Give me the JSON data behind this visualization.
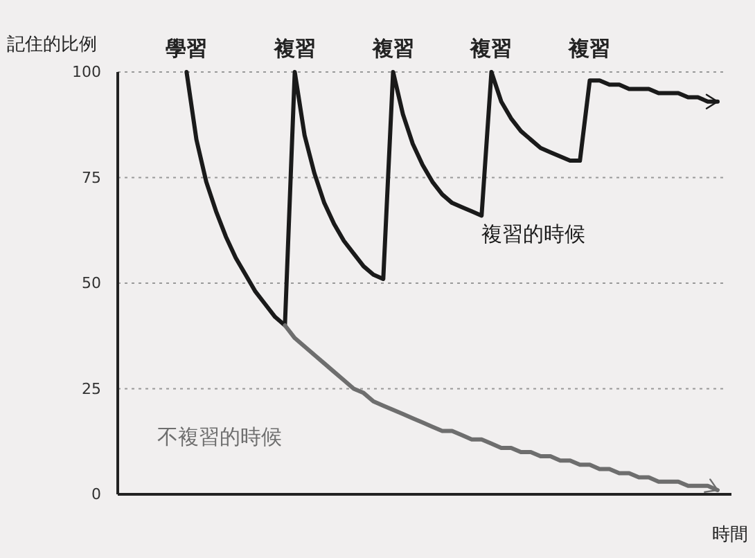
{
  "chart_data": {
    "type": "line",
    "ylabel": "記住的比例",
    "xlabel": "時間",
    "categories": [
      null,
      null,
      null,
      null,
      null,
      null,
      null,
      null,
      null,
      null,
      null,
      null,
      null,
      null,
      null,
      null,
      null,
      null,
      null,
      null,
      null,
      null,
      null,
      null,
      null,
      null,
      null,
      null,
      null,
      null,
      null,
      null,
      null,
      null,
      null,
      null,
      null,
      null,
      null,
      null,
      null,
      null,
      null,
      null,
      null,
      null,
      null,
      null,
      null,
      null,
      null,
      null,
      null,
      null,
      null,
      null,
      null,
      null,
      null,
      null,
      null,
      null
    ],
    "series": [
      {
        "name": "複習的時候",
        "color": "#1a1a1a",
        "values": [
          null,
          null,
          null,
          null,
          null,
          null,
          null,
          100,
          84,
          74,
          67,
          61,
          56,
          52,
          48,
          45,
          42,
          40,
          100,
          85,
          76,
          69,
          64,
          60,
          57,
          54,
          52,
          51,
          100,
          90,
          83,
          78,
          74,
          71,
          69,
          68,
          67,
          66,
          100,
          93,
          89,
          86,
          84,
          82,
          81,
          80,
          79,
          79,
          98,
          98,
          97,
          97,
          96,
          96,
          96,
          95,
          95,
          95,
          94,
          94,
          93,
          93
        ]
      },
      {
        "name": "不複習的時候",
        "color": "#6e6e6e",
        "values": [
          null,
          null,
          null,
          null,
          null,
          null,
          null,
          null,
          null,
          null,
          null,
          null,
          null,
          null,
          null,
          null,
          null,
          40,
          37,
          35,
          33,
          31,
          29,
          27,
          25,
          24,
          22,
          21,
          20,
          19,
          18,
          17,
          16,
          15,
          15,
          14,
          13,
          13,
          12,
          11,
          11,
          10,
          10,
          9,
          9,
          8,
          8,
          7,
          7,
          6,
          6,
          5,
          5,
          4,
          4,
          3,
          3,
          3,
          2,
          2,
          2,
          1
        ]
      }
    ],
    "annotations": [
      "學習",
      "複習",
      "複習",
      "複習",
      "複習"
    ],
    "ylim": [
      0,
      100
    ],
    "yticks": [
      0,
      25,
      50,
      75,
      100
    ],
    "grid": "y",
    "line_style": "solid"
  }
}
